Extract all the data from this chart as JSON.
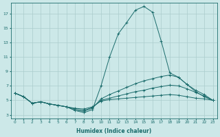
{
  "xlabel": "Humidex (Indice chaleur)",
  "bg_color": "#cce8e8",
  "grid_color": "#aacccc",
  "line_color": "#1a6b6b",
  "xlim": [
    -0.5,
    23.5
  ],
  "ylim": [
    2.5,
    18.5
  ],
  "xticks": [
    0,
    1,
    2,
    3,
    4,
    5,
    6,
    7,
    8,
    9,
    10,
    11,
    12,
    13,
    14,
    15,
    16,
    17,
    18,
    19,
    20,
    21,
    22,
    23
  ],
  "yticks": [
    3,
    5,
    7,
    9,
    11,
    13,
    15,
    17
  ],
  "series": [
    {
      "x": [
        0,
        1,
        2,
        3,
        4,
        5,
        6,
        7,
        8,
        9,
        10,
        11,
        12,
        13,
        14,
        15,
        16,
        17,
        18,
        19,
        20,
        21,
        22,
        23
      ],
      "y": [
        6.0,
        5.5,
        4.6,
        4.8,
        4.5,
        4.3,
        4.1,
        3.6,
        3.3,
        3.7,
        7.0,
        11.0,
        14.2,
        15.8,
        17.5,
        18.0,
        17.2,
        13.2,
        8.8,
        8.2,
        7.2,
        6.2,
        5.5,
        5.0
      ]
    },
    {
      "x": [
        0,
        1,
        2,
        3,
        4,
        5,
        6,
        7,
        8,
        9,
        10,
        11,
        12,
        13,
        14,
        15,
        16,
        17,
        18,
        19,
        20,
        21,
        22,
        23
      ],
      "y": [
        6.0,
        5.5,
        4.6,
        4.8,
        4.5,
        4.3,
        4.1,
        3.6,
        3.5,
        3.9,
        5.2,
        5.8,
        6.3,
        6.8,
        7.3,
        7.7,
        8.0,
        8.3,
        8.5,
        8.2,
        7.2,
        6.4,
        5.8,
        5.0
      ]
    },
    {
      "x": [
        0,
        1,
        2,
        3,
        4,
        5,
        6,
        7,
        8,
        9,
        10,
        11,
        12,
        13,
        14,
        15,
        16,
        17,
        18,
        19,
        20,
        21,
        22,
        23
      ],
      "y": [
        6.0,
        5.5,
        4.6,
        4.8,
        4.5,
        4.3,
        4.1,
        3.8,
        3.6,
        4.0,
        5.0,
        5.3,
        5.6,
        5.9,
        6.2,
        6.4,
        6.7,
        6.9,
        7.1,
        7.0,
        6.6,
        6.1,
        5.6,
        5.0
      ]
    },
    {
      "x": [
        0,
        1,
        2,
        3,
        4,
        5,
        6,
        7,
        8,
        9,
        10,
        11,
        12,
        13,
        14,
        15,
        16,
        17,
        18,
        19,
        20,
        21,
        22,
        23
      ],
      "y": [
        6.0,
        5.5,
        4.6,
        4.8,
        4.5,
        4.3,
        4.1,
        3.9,
        3.8,
        4.1,
        4.9,
        5.1,
        5.2,
        5.3,
        5.4,
        5.5,
        5.6,
        5.7,
        5.8,
        5.7,
        5.5,
        5.3,
        5.2,
        5.0
      ]
    }
  ]
}
